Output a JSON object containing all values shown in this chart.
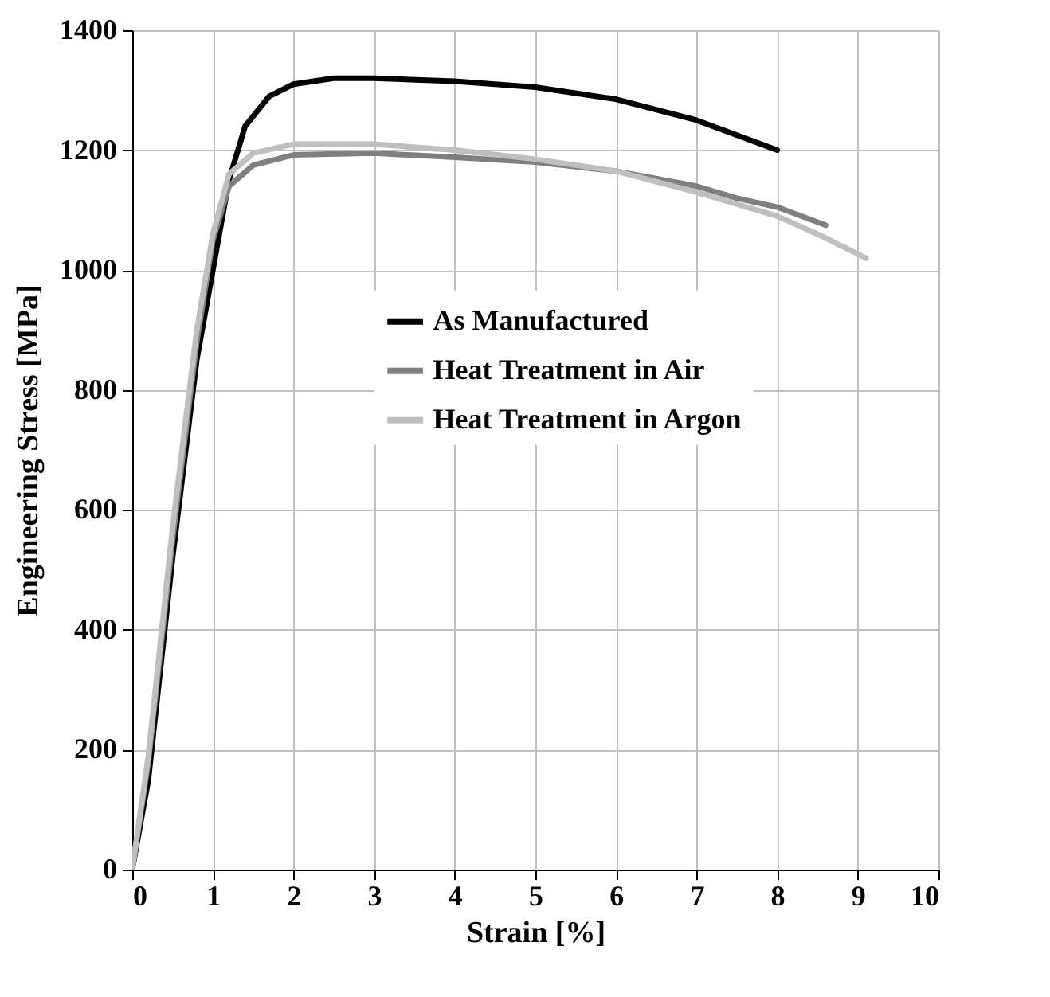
{
  "chart_data": {
    "type": "line",
    "xlabel": "Strain [%]",
    "ylabel": "Engineering Stress [MPa]",
    "xlim": [
      0,
      10
    ],
    "ylim": [
      0,
      1400
    ],
    "xticks": [
      0,
      1,
      2,
      3,
      4,
      5,
      6,
      7,
      8,
      9,
      10
    ],
    "yticks": [
      0,
      200,
      400,
      600,
      800,
      1000,
      1200,
      1400
    ],
    "grid": true,
    "legend": "right",
    "marker": "none",
    "line_style": "solid",
    "series": [
      {
        "name": "As Manufactured",
        "color": "#000000",
        "x": [
          0,
          0.2,
          0.5,
          0.8,
          1.0,
          1.2,
          1.4,
          1.7,
          2,
          2.5,
          3,
          4,
          5,
          6,
          7,
          7.5,
          8
        ],
        "values": [
          0,
          150,
          520,
          850,
          1000,
          1150,
          1240,
          1290,
          1310,
          1320,
          1320,
          1315,
          1305,
          1285,
          1250,
          1225,
          1200
        ]
      },
      {
        "name": "Heat Treatment in Air",
        "color": "#7f7f7f",
        "x": [
          0,
          0.2,
          0.5,
          0.8,
          1,
          1.2,
          1.5,
          2,
          3,
          4,
          5,
          6,
          7,
          7.5,
          8,
          8.6
        ],
        "values": [
          0,
          180,
          550,
          880,
          1050,
          1140,
          1175,
          1192,
          1195,
          1188,
          1180,
          1165,
          1140,
          1120,
          1105,
          1075
        ]
      },
      {
        "name": "Heat Treatment in Argon",
        "color": "#bfbfbf",
        "x": [
          0,
          0.2,
          0.5,
          0.8,
          1,
          1.2,
          1.5,
          2,
          3,
          4,
          5,
          6,
          7,
          8,
          8.5,
          9.1
        ],
        "values": [
          0,
          190,
          570,
          900,
          1060,
          1160,
          1195,
          1210,
          1210,
          1200,
          1185,
          1165,
          1130,
          1090,
          1060,
          1020
        ]
      }
    ]
  }
}
